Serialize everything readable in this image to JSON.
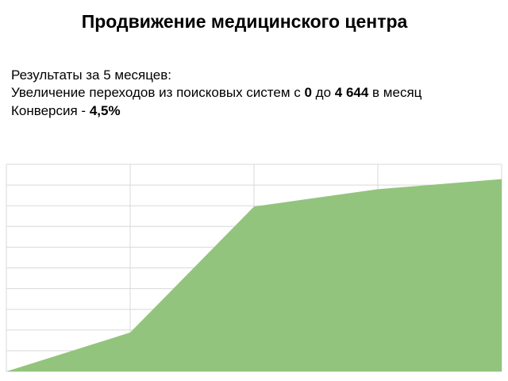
{
  "title": "Продвижение медицинского центра",
  "summary": {
    "line1": "Результаты за 5 месяцев:",
    "line2": [
      "Увеличение переходов из поисковых систем с ",
      "0",
      " до ",
      "4 644",
      " в месяц"
    ],
    "line3": [
      "Конверсия - ",
      "4,5%"
    ]
  },
  "chart_data": {
    "type": "area",
    "categories": [
      null,
      null,
      null,
      null,
      null
    ],
    "values": [
      0,
      940,
      3980,
      4400,
      4644
    ],
    "color": "#93c47d",
    "ylim": [
      0,
      5000
    ],
    "yticks": [
      0,
      500,
      1000,
      1500,
      2000,
      2500,
      3000,
      3500,
      4000,
      4500,
      5000
    ],
    "grid": true
  }
}
